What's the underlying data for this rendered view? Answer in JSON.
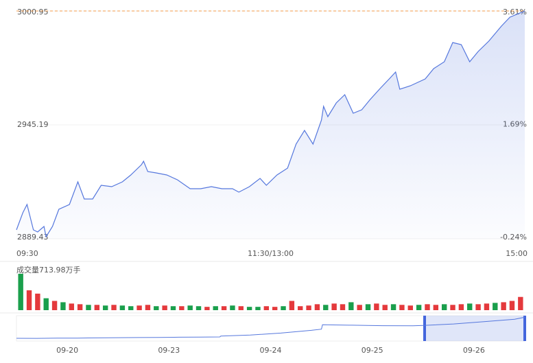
{
  "chart_data": {
    "type": "line",
    "color": "#5577dd",
    "x": [
      0,
      3,
      5,
      8,
      10,
      13,
      14,
      17,
      20,
      25,
      29,
      32,
      36,
      40,
      45,
      50,
      54,
      59,
      60,
      62,
      66,
      71,
      76,
      82,
      87,
      92,
      97,
      102,
      105,
      110,
      115,
      118,
      123,
      128,
      132,
      136,
      140,
      144,
      145,
      147,
      151,
      155,
      159,
      163,
      167,
      172,
      176,
      179,
      181,
      186,
      193,
      197,
      202,
      206,
      210,
      214,
      218,
      223,
      229,
      233,
      240
    ],
    "values": [
      2893.8,
      2902.2,
      2906.23,
      2893.8,
      2892.79,
      2895.48,
      2890.44,
      2895.48,
      2903.87,
      2906.23,
      2917.31,
      2908.91,
      2908.91,
      2915.63,
      2914.96,
      2917.31,
      2920.67,
      2925.71,
      2927.39,
      2922.35,
      2921.68,
      2920.67,
      2918.32,
      2913.95,
      2913.95,
      2914.96,
      2913.95,
      2913.95,
      2912.27,
      2914.96,
      2918.99,
      2915.63,
      2920.67,
      2924.03,
      2935.79,
      2942.5,
      2935.79,
      2947.54,
      2954.26,
      2949.22,
      2955.94,
      2959.97,
      2950.9,
      2952.58,
      2957.62,
      2963.33,
      2967.7,
      2971.05,
      2962.66,
      2964.34,
      2967.7,
      2972.73,
      2976.09,
      2985.5,
      2984.49,
      2976.09,
      2981.13,
      2986.17,
      2993.56,
      2997.93,
      3000.95
    ],
    "xlim": [
      0,
      240
    ],
    "xticks": [
      {
        "value": 0,
        "label": "09:30"
      },
      {
        "value": 120,
        "label": "11:30/13:00"
      },
      {
        "value": 240,
        "label": "15:00"
      }
    ],
    "ylim": [
      2889.43,
      3000.95
    ],
    "yticks": [
      2889.43,
      2945.19,
      3000.95
    ],
    "ytick_colors": [
      "#1a9f4c",
      "#e4393c",
      "#e4393c"
    ],
    "y2lim": [
      -0.24,
      3.61
    ],
    "y2ticks": [
      {
        "value": -0.24,
        "label": "-0.24%"
      },
      {
        "value": 1.69,
        "label": "1.69%"
      },
      {
        "value": 3.61,
        "label": "3.61%"
      }
    ],
    "high_line": 3000.95,
    "high_line_color": "#f39a4a",
    "grid": true,
    "volume": {
      "label": "成交量713.98万手",
      "ylim": [
        0,
        56
      ],
      "values": [
        55,
        30,
        25,
        18,
        14,
        12,
        10,
        9,
        8,
        8,
        7,
        8,
        7,
        6,
        7,
        8,
        6,
        7,
        6,
        6,
        7,
        6,
        5,
        6,
        6,
        7,
        6,
        5,
        5,
        6,
        5,
        6,
        14,
        6,
        7,
        9,
        8,
        10,
        9,
        12,
        8,
        9,
        10,
        8,
        9,
        8,
        7,
        8,
        9,
        8,
        9,
        8,
        9,
        10,
        9,
        10,
        11,
        12,
        14,
        20
      ],
      "colors": [
        "#1a9f4c",
        "#e4393c",
        "#e4393c",
        "#1a9f4c",
        "#e4393c",
        "#1a9f4c",
        "#e4393c",
        "#e4393c",
        "#1a9f4c",
        "#e4393c",
        "#1a9f4c",
        "#e4393c",
        "#1a9f4c",
        "#1a9f4c",
        "#e4393c",
        "#e4393c",
        "#1a9f4c",
        "#e4393c",
        "#1a9f4c",
        "#e4393c",
        "#1a9f4c",
        "#1a9f4c",
        "#e4393c",
        "#1a9f4c",
        "#e4393c",
        "#1a9f4c",
        "#e4393c",
        "#1a9f4c",
        "#1a9f4c",
        "#e4393c",
        "#e4393c",
        "#1a9f4c",
        "#e4393c",
        "#e4393c",
        "#e4393c",
        "#e4393c",
        "#1a9f4c",
        "#e4393c",
        "#e4393c",
        "#1a9f4c",
        "#e4393c",
        "#1a9f4c",
        "#e4393c",
        "#e4393c",
        "#1a9f4c",
        "#e4393c",
        "#e4393c",
        "#1a9f4c",
        "#e4393c",
        "#e4393c",
        "#1a9f4c",
        "#e4393c",
        "#e4393c",
        "#1a9f4c",
        "#e4393c",
        "#e4393c",
        "#1a9f4c",
        "#e4393c",
        "#e4393c",
        "#e4393c"
      ]
    },
    "navigator": {
      "color": "#5577dd",
      "x": [
        0,
        0.2,
        0.4,
        0.6,
        0.8,
        1,
        1.2,
        1.4,
        1.6,
        1.8,
        2,
        2.01,
        2.3,
        2.6,
        2.9,
        3,
        3.01,
        3.3,
        3.6,
        3.9,
        4,
        4.3,
        4.6,
        4.9,
        5
      ],
      "values": [
        2735,
        2734,
        2736,
        2737,
        2740,
        2742,
        2744,
        2746,
        2748,
        2750,
        2752,
        2762,
        2775,
        2800,
        2835,
        2850,
        2905,
        2900,
        2894,
        2892,
        2896,
        2915,
        2945,
        2975,
        3000
      ],
      "xlim": [
        0,
        5
      ],
      "ylim": [
        2700,
        3020
      ],
      "xticks": [
        {
          "value": 0.5,
          "label": "09-20"
        },
        {
          "value": 1.5,
          "label": "09-23"
        },
        {
          "value": 2.5,
          "label": "09-24"
        },
        {
          "value": 3.5,
          "label": "09-25"
        },
        {
          "value": 4.5,
          "label": "09-26"
        }
      ]
    }
  }
}
